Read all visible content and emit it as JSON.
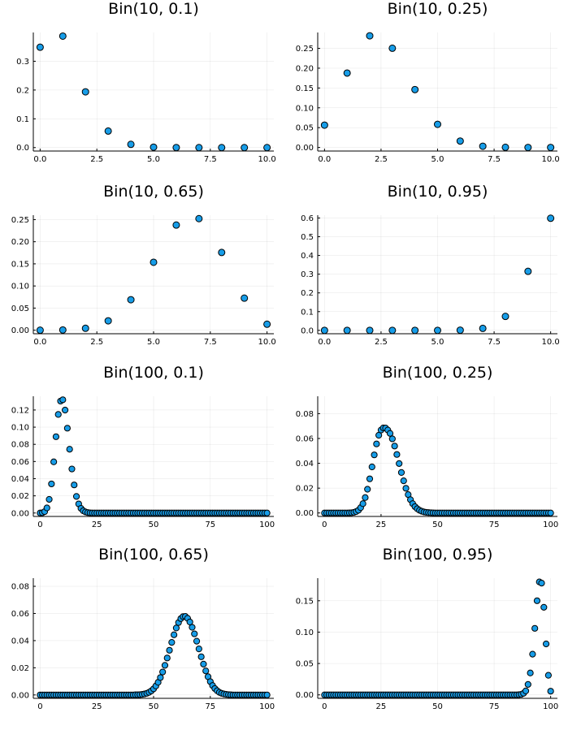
{
  "chart_data": [
    {
      "type": "scatter",
      "title": "Bin(10, 0.1)",
      "xlabel": "",
      "ylabel": "",
      "grid": true,
      "legend": "none",
      "xlim": [
        -0.3,
        10.3
      ],
      "ylim": [
        -0.012,
        0.4
      ],
      "xticks": [
        0,
        2.5,
        5,
        7.5,
        10
      ],
      "xtick_labels": [
        "0.0",
        "2.5",
        "5.0",
        "7.5",
        "10.0"
      ],
      "yticks": [
        0,
        0.1,
        0.2,
        0.3
      ],
      "ytick_labels": [
        "0.0",
        "0.1",
        "0.2",
        "0.3"
      ],
      "x": [
        0,
        1,
        2,
        3,
        4,
        5,
        6,
        7,
        8,
        9,
        10
      ],
      "y": [
        0.3487,
        0.3874,
        0.1937,
        0.0574,
        0.0112,
        0.0015,
        0.0001,
        0.0,
        0.0,
        0.0,
        0.0
      ]
    },
    {
      "type": "scatter",
      "title": "Bin(10, 0.25)",
      "xlabel": "",
      "ylabel": "",
      "grid": true,
      "legend": "none",
      "xlim": [
        -0.3,
        10.3
      ],
      "ylim": [
        -0.009,
        0.29
      ],
      "xticks": [
        0,
        2.5,
        5,
        7.5,
        10
      ],
      "xtick_labels": [
        "0.0",
        "2.5",
        "5.0",
        "7.5",
        "10.0"
      ],
      "yticks": [
        0,
        0.05,
        0.1,
        0.15,
        0.2,
        0.25
      ],
      "ytick_labels": [
        "0.00",
        "0.05",
        "0.10",
        "0.15",
        "0.20",
        "0.25"
      ],
      "x": [
        0,
        1,
        2,
        3,
        4,
        5,
        6,
        7,
        8,
        9,
        10
      ],
      "y": [
        0.0563,
        0.1877,
        0.2816,
        0.2503,
        0.146,
        0.0584,
        0.0162,
        0.0031,
        0.0004,
        0.0,
        0.0
      ]
    },
    {
      "type": "scatter",
      "title": "Bin(10, 0.65)",
      "xlabel": "",
      "ylabel": "",
      "grid": true,
      "legend": "none",
      "xlim": [
        -0.3,
        10.3
      ],
      "ylim": [
        -0.008,
        0.26
      ],
      "xticks": [
        0,
        2.5,
        5,
        7.5,
        10
      ],
      "xtick_labels": [
        "0.0",
        "2.5",
        "5.0",
        "7.5",
        "10.0"
      ],
      "yticks": [
        0,
        0.05,
        0.1,
        0.15,
        0.2,
        0.25
      ],
      "ytick_labels": [
        "0.00",
        "0.05",
        "0.10",
        "0.15",
        "0.20",
        "0.25"
      ],
      "x": [
        0,
        1,
        2,
        3,
        4,
        5,
        6,
        7,
        8,
        9,
        10
      ],
      "y": [
        0.0,
        0.0005,
        0.0043,
        0.0212,
        0.0689,
        0.1536,
        0.2377,
        0.2522,
        0.1757,
        0.0725,
        0.0135
      ]
    },
    {
      "type": "scatter",
      "title": "Bin(10, 0.95)",
      "xlabel": "",
      "ylabel": "",
      "grid": true,
      "legend": "none",
      "xlim": [
        -0.3,
        10.3
      ],
      "ylim": [
        -0.018,
        0.615
      ],
      "xticks": [
        0,
        2.5,
        5,
        7.5,
        10
      ],
      "xtick_labels": [
        "0.0",
        "2.5",
        "5.0",
        "7.5",
        "10.0"
      ],
      "yticks": [
        0,
        0.1,
        0.2,
        0.3,
        0.4,
        0.5,
        0.6
      ],
      "ytick_labels": [
        "0.0",
        "0.1",
        "0.2",
        "0.3",
        "0.4",
        "0.5",
        "0.6"
      ],
      "x": [
        0,
        1,
        2,
        3,
        4,
        5,
        6,
        7,
        8,
        9,
        10
      ],
      "y": [
        0.0,
        0.0,
        0.0,
        0.0,
        0.0,
        0.0,
        0.001,
        0.0105,
        0.0746,
        0.3151,
        0.5987
      ]
    },
    {
      "type": "scatter",
      "title": "Bin(100, 0.1)",
      "xlabel": "",
      "ylabel": "",
      "grid": true,
      "legend": "none",
      "xlim": [
        -3,
        103
      ],
      "ylim": [
        -0.004,
        0.136
      ],
      "xticks": [
        0,
        25,
        50,
        75,
        100
      ],
      "xtick_labels": [
        "0",
        "25",
        "50",
        "75",
        "100"
      ],
      "yticks": [
        0,
        0.02,
        0.04,
        0.06,
        0.08,
        0.1,
        0.12
      ],
      "ytick_labels": [
        "0.00",
        "0.02",
        "0.04",
        "0.06",
        "0.08",
        "0.10",
        "0.12"
      ],
      "x": [
        0,
        1,
        2,
        3,
        4,
        5,
        6,
        7,
        8,
        9,
        10,
        11,
        12,
        13,
        14,
        15,
        16,
        17,
        18,
        19,
        20,
        21,
        22,
        23,
        24,
        25,
        26,
        27,
        28,
        29,
        30,
        31,
        32,
        33,
        34,
        35,
        36,
        37,
        38,
        39,
        40,
        41,
        42,
        43,
        44,
        45,
        46,
        47,
        48,
        49,
        50,
        51,
        52,
        53,
        54,
        55,
        56,
        57,
        58,
        59,
        60,
        61,
        62,
        63,
        64,
        65,
        66,
        67,
        68,
        69,
        70,
        71,
        72,
        73,
        74,
        75,
        76,
        77,
        78,
        79,
        80,
        81,
        82,
        83,
        84,
        85,
        86,
        87,
        88,
        89,
        90,
        91,
        92,
        93,
        94,
        95,
        96,
        97,
        98,
        99,
        100
      ],
      "y": [
        0.0,
        0.0003,
        0.0016,
        0.0059,
        0.0159,
        0.0339,
        0.0596,
        0.0889,
        0.1148,
        0.1304,
        0.1319,
        0.1199,
        0.0988,
        0.0743,
        0.0513,
        0.0327,
        0.0193,
        0.0106,
        0.0054,
        0.0026,
        0.0012,
        0.0005,
        0.0002,
        0.0001,
        0.0,
        0.0,
        0.0,
        0.0,
        0.0,
        0.0,
        0.0,
        0.0,
        0.0,
        0.0,
        0.0,
        0.0,
        0.0,
        0.0,
        0.0,
        0.0,
        0.0,
        0.0,
        0.0,
        0.0,
        0.0,
        0.0,
        0.0,
        0.0,
        0.0,
        0.0,
        0.0,
        0.0,
        0.0,
        0.0,
        0.0,
        0.0,
        0.0,
        0.0,
        0.0,
        0.0,
        0.0,
        0.0,
        0.0,
        0.0,
        0.0,
        0.0,
        0.0,
        0.0,
        0.0,
        0.0,
        0.0,
        0.0,
        0.0,
        0.0,
        0.0,
        0.0,
        0.0,
        0.0,
        0.0,
        0.0,
        0.0,
        0.0,
        0.0,
        0.0,
        0.0,
        0.0,
        0.0,
        0.0,
        0.0,
        0.0,
        0.0,
        0.0,
        0.0,
        0.0,
        0.0,
        0.0,
        0.0,
        0.0,
        0.0,
        0.0,
        0.0
      ]
    },
    {
      "type": "scatter",
      "title": "Bin(100, 0.25)",
      "xlabel": "",
      "ylabel": "",
      "grid": true,
      "legend": "none",
      "xlim": [
        -3,
        103
      ],
      "ylim": [
        -0.0028,
        0.094
      ],
      "xticks": [
        0,
        25,
        50,
        75,
        100
      ],
      "xtick_labels": [
        "0",
        "25",
        "50",
        "75",
        "100"
      ],
      "yticks": [
        0,
        0.02,
        0.04,
        0.06,
        0.08
      ],
      "ytick_labels": [
        "0.00",
        "0.02",
        "0.04",
        "0.06",
        "0.08"
      ],
      "x": [
        0,
        1,
        2,
        3,
        4,
        5,
        6,
        7,
        8,
        9,
        10,
        11,
        12,
        13,
        14,
        15,
        16,
        17,
        18,
        19,
        20,
        21,
        22,
        23,
        24,
        25,
        26,
        27,
        28,
        29,
        30,
        31,
        32,
        33,
        34,
        35,
        36,
        37,
        38,
        39,
        40,
        41,
        42,
        43,
        44,
        45,
        46,
        47,
        48,
        49,
        50,
        51,
        52,
        53,
        54,
        55,
        56,
        57,
        58,
        59,
        60,
        61,
        62,
        63,
        64,
        65,
        66,
        67,
        68,
        69,
        70,
        71,
        72,
        73,
        74,
        75,
        76,
        77,
        78,
        79,
        80,
        81,
        82,
        83,
        84,
        85,
        86,
        87,
        88,
        89,
        90,
        91,
        92,
        93,
        94,
        95,
        96,
        97,
        98,
        99,
        100
      ],
      "y": [
        0.0,
        0.0,
        0.0,
        0.0,
        0.0,
        0.0,
        0.0,
        0.0,
        0.0,
        0.0,
        0.0,
        0.0001,
        0.0002,
        0.0005,
        0.0011,
        0.0022,
        0.0043,
        0.0075,
        0.0124,
        0.0191,
        0.0275,
        0.0371,
        0.0468,
        0.0556,
        0.0626,
        0.0668,
        0.0685,
        0.0684,
        0.0668,
        0.0641,
        0.0597,
        0.0539,
        0.0471,
        0.0398,
        0.0326,
        0.0259,
        0.0199,
        0.0148,
        0.0107,
        0.0075,
        0.0051,
        0.0034,
        0.0022,
        0.0014,
        0.0008,
        0.0005,
        0.0003,
        0.0002,
        0.0001,
        0.0,
        0.0,
        0.0,
        0.0,
        0.0,
        0.0,
        0.0,
        0.0,
        0.0,
        0.0,
        0.0,
        0.0,
        0.0,
        0.0,
        0.0,
        0.0,
        0.0,
        0.0,
        0.0,
        0.0,
        0.0,
        0.0,
        0.0,
        0.0,
        0.0,
        0.0,
        0.0,
        0.0,
        0.0,
        0.0,
        0.0,
        0.0,
        0.0,
        0.0,
        0.0,
        0.0,
        0.0,
        0.0,
        0.0,
        0.0,
        0.0,
        0.0,
        0.0,
        0.0,
        0.0,
        0.0,
        0.0,
        0.0,
        0.0,
        0.0,
        0.0,
        0.0
      ]
    },
    {
      "type": "scatter",
      "title": "Bin(100, 0.65)",
      "xlabel": "",
      "ylabel": "",
      "grid": true,
      "legend": "none",
      "xlim": [
        -3,
        103
      ],
      "ylim": [
        -0.0025,
        0.086
      ],
      "xticks": [
        0,
        25,
        50,
        75,
        100
      ],
      "xtick_labels": [
        "0",
        "25",
        "50",
        "75",
        "100"
      ],
      "yticks": [
        0,
        0.02,
        0.04,
        0.06,
        0.08
      ],
      "ytick_labels": [
        "0.00",
        "0.02",
        "0.04",
        "0.06",
        "0.08"
      ],
      "x": [
        0,
        1,
        2,
        3,
        4,
        5,
        6,
        7,
        8,
        9,
        10,
        11,
        12,
        13,
        14,
        15,
        16,
        17,
        18,
        19,
        20,
        21,
        22,
        23,
        24,
        25,
        26,
        27,
        28,
        29,
        30,
        31,
        32,
        33,
        34,
        35,
        36,
        37,
        38,
        39,
        40,
        41,
        42,
        43,
        44,
        45,
        46,
        47,
        48,
        49,
        50,
        51,
        52,
        53,
        54,
        55,
        56,
        57,
        58,
        59,
        60,
        61,
        62,
        63,
        64,
        65,
        66,
        67,
        68,
        69,
        70,
        71,
        72,
        73,
        74,
        75,
        76,
        77,
        78,
        79,
        80,
        81,
        82,
        83,
        84,
        85,
        86,
        87,
        88,
        89,
        90,
        91,
        92,
        93,
        94,
        95,
        96,
        97,
        98,
        99,
        100
      ],
      "y": [
        0.0,
        0.0,
        0.0,
        0.0,
        0.0,
        0.0,
        0.0,
        0.0,
        0.0,
        0.0,
        0.0,
        0.0,
        0.0,
        0.0,
        0.0,
        0.0,
        0.0,
        0.0,
        0.0,
        0.0,
        0.0,
        0.0,
        0.0,
        0.0,
        0.0,
        0.0,
        0.0,
        0.0,
        0.0,
        0.0,
        0.0,
        0.0,
        0.0,
        0.0,
        0.0,
        0.0,
        0.0,
        0.0,
        0.0,
        0.0,
        0.0,
        0.0,
        0.0001,
        0.0001,
        0.0002,
        0.0004,
        0.0007,
        0.0012,
        0.0019,
        0.003,
        0.0045,
        0.0066,
        0.0093,
        0.0128,
        0.0169,
        0.0218,
        0.0272,
        0.0329,
        0.0387,
        0.0443,
        0.0493,
        0.0533,
        0.0562,
        0.0577,
        0.0578,
        0.0564,
        0.0537,
        0.0498,
        0.045,
        0.0396,
        0.0339,
        0.0281,
        0.0227,
        0.0177,
        0.0134,
        0.0098,
        0.0069,
        0.0047,
        0.0031,
        0.0019,
        0.0012,
        0.0007,
        0.0004,
        0.0002,
        0.0001,
        0.0,
        0.0,
        0.0,
        0.0,
        0.0,
        0.0,
        0.0,
        0.0,
        0.0,
        0.0,
        0.0,
        0.0,
        0.0,
        0.0,
        0.0,
        0.0
      ]
    },
    {
      "type": "scatter",
      "title": "Bin(100, 0.95)",
      "xlabel": "",
      "ylabel": "",
      "grid": true,
      "legend": "none",
      "xlim": [
        -3,
        103
      ],
      "ylim": [
        -0.0055,
        0.186
      ],
      "xticks": [
        0,
        25,
        50,
        75,
        100
      ],
      "xtick_labels": [
        "0",
        "25",
        "50",
        "75",
        "100"
      ],
      "yticks": [
        0,
        0.05,
        0.1,
        0.15
      ],
      "ytick_labels": [
        "0.00",
        "0.05",
        "0.10",
        "0.15"
      ],
      "x": [
        0,
        1,
        2,
        3,
        4,
        5,
        6,
        7,
        8,
        9,
        10,
        11,
        12,
        13,
        14,
        15,
        16,
        17,
        18,
        19,
        20,
        21,
        22,
        23,
        24,
        25,
        26,
        27,
        28,
        29,
        30,
        31,
        32,
        33,
        34,
        35,
        36,
        37,
        38,
        39,
        40,
        41,
        42,
        43,
        44,
        45,
        46,
        47,
        48,
        49,
        50,
        51,
        52,
        53,
        54,
        55,
        56,
        57,
        58,
        59,
        60,
        61,
        62,
        63,
        64,
        65,
        66,
        67,
        68,
        69,
        70,
        71,
        72,
        73,
        74,
        75,
        76,
        77,
        78,
        79,
        80,
        81,
        82,
        83,
        84,
        85,
        86,
        87,
        88,
        89,
        90,
        91,
        92,
        93,
        94,
        95,
        96,
        97,
        98,
        99,
        100
      ],
      "y": [
        0.0,
        0.0,
        0.0,
        0.0,
        0.0,
        0.0,
        0.0,
        0.0,
        0.0,
        0.0,
        0.0,
        0.0,
        0.0,
        0.0,
        0.0,
        0.0,
        0.0,
        0.0,
        0.0,
        0.0,
        0.0,
        0.0,
        0.0,
        0.0,
        0.0,
        0.0,
        0.0,
        0.0,
        0.0,
        0.0,
        0.0,
        0.0,
        0.0,
        0.0,
        0.0,
        0.0,
        0.0,
        0.0,
        0.0,
        0.0,
        0.0,
        0.0,
        0.0,
        0.0,
        0.0,
        0.0,
        0.0,
        0.0,
        0.0,
        0.0,
        0.0,
        0.0,
        0.0,
        0.0,
        0.0,
        0.0,
        0.0,
        0.0,
        0.0,
        0.0,
        0.0,
        0.0,
        0.0,
        0.0,
        0.0,
        0.0,
        0.0,
        0.0,
        0.0,
        0.0,
        0.0,
        0.0,
        0.0,
        0.0,
        0.0,
        0.0,
        0.0,
        0.0,
        0.0,
        0.0,
        0.0,
        0.0,
        0.0,
        0.0,
        0.0,
        0.0001,
        0.0003,
        0.0009,
        0.0025,
        0.0063,
        0.0167,
        0.0349,
        0.0649,
        0.106,
        0.15,
        0.18,
        0.1781,
        0.1396,
        0.0812,
        0.0312,
        0.0059
      ]
    }
  ],
  "colors": {
    "marker": "#179de8",
    "marker_edge": "#000000",
    "axis": "#000000",
    "background": "#ffffff"
  }
}
